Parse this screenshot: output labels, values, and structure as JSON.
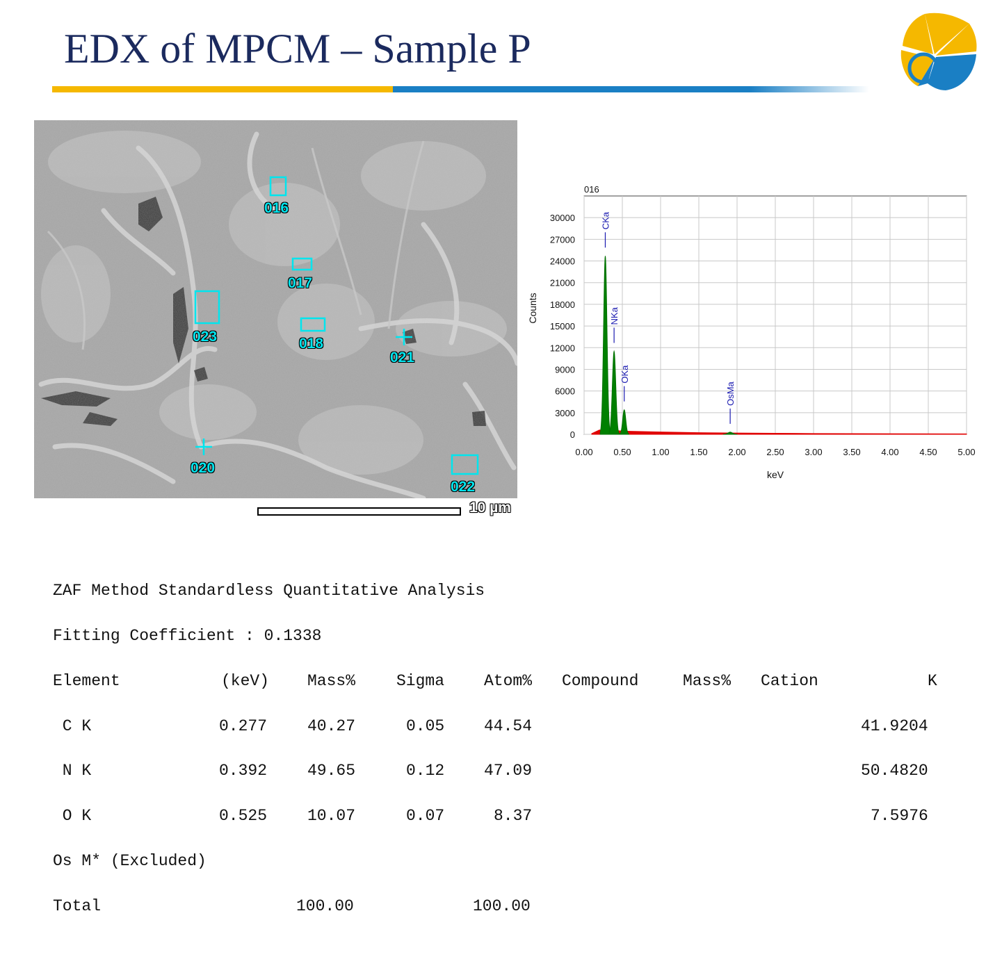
{
  "slide": {
    "title": "EDX of MPCM – Sample P"
  },
  "colors": {
    "title": "#1b2a5e",
    "rule_gold": "#f5b800",
    "rule_blue": "#1a7fc4",
    "spectrum_peak": "#008000",
    "spectrum_bg": "#e00000",
    "peak_label": "#1a1ab0",
    "roi": "#00e5ee"
  },
  "sem": {
    "labels": [
      "016",
      "017",
      "023",
      "018",
      "021",
      "020",
      "022"
    ],
    "scale_bar": "10 µm"
  },
  "chart_data": {
    "type": "area",
    "title": "016",
    "xlabel": "keV",
    "ylabel": "Counts",
    "xlim": [
      0.0,
      5.0
    ],
    "ylim": [
      0,
      33000
    ],
    "x_ticks": [
      "0.00",
      "0.50",
      "1.00",
      "1.50",
      "2.00",
      "2.50",
      "3.00",
      "3.50",
      "4.00",
      "4.50",
      "5.00"
    ],
    "y_ticks": [
      "0",
      "3000",
      "6000",
      "9000",
      "12000",
      "15000",
      "18000",
      "21000",
      "24000",
      "27000",
      "30000"
    ],
    "grid": true,
    "peaks": [
      {
        "label": "CKa",
        "energy": 0.277,
        "counts": 24700
      },
      {
        "label": "NKa",
        "energy": 0.392,
        "counts": 11500
      },
      {
        "label": "OKa",
        "energy": 0.525,
        "counts": 3400
      },
      {
        "label": "OsMa",
        "energy": 1.91,
        "counts": 300
      }
    ],
    "background": {
      "energy": [
        0.1,
        0.2,
        0.6,
        1.0,
        1.5,
        2.0,
        2.5,
        3.0,
        5.0
      ],
      "counts": [
        100,
        600,
        420,
        320,
        230,
        180,
        150,
        110,
        60
      ]
    }
  },
  "report": {
    "heading": "ZAF Method Standardless Quantitative Analysis",
    "fitting": "Fitting Coefficient : 0.1338",
    "columns": [
      "Element",
      "(keV)",
      "Mass%",
      "Sigma",
      "Atom%",
      "Compound",
      "Mass%",
      "Cation",
      "K"
    ],
    "rows": [
      {
        "element": " C K",
        "kev": "0.277",
        "mass": "40.27",
        "sigma": "0.05",
        "atom": "44.54",
        "k": "41.9204"
      },
      {
        "element": " N K",
        "kev": "0.392",
        "mass": "49.65",
        "sigma": "0.12",
        "atom": "47.09",
        "k": "50.4820"
      },
      {
        "element": " O K",
        "kev": "0.525",
        "mass": "10.07",
        "sigma": "0.07",
        "atom": "8.37",
        "k": "7.5976"
      }
    ],
    "excluded": "Os M* (Excluded)",
    "total_label": "Total",
    "total_mass": "100.00",
    "total_atom": "100.00"
  }
}
